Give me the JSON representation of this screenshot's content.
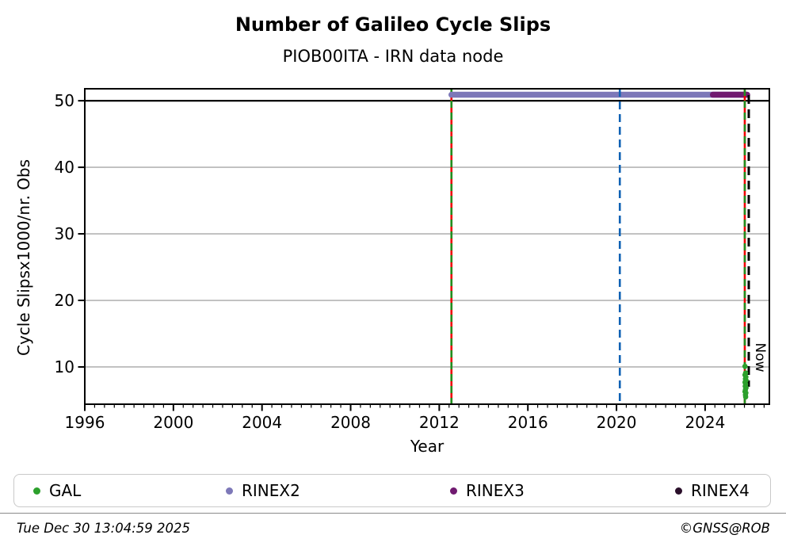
{
  "page": {
    "title": "Number of Galileo Cycle Slips",
    "subtitle": "PIOB00ITA - IRN data node",
    "footer_left": "Tue Dec 30 13:04:59 2025",
    "footer_right": "©GNSS@ROB"
  },
  "legend": {
    "items": [
      {
        "label": "GAL",
        "color": "#2ca02c"
      },
      {
        "label": "RINEX2",
        "color": "#7d78b8"
      },
      {
        "label": "RINEX3",
        "color": "#701a70"
      },
      {
        "label": "RINEX4",
        "color": "#2a0f2a"
      }
    ]
  },
  "chart_data": {
    "type": "scatter",
    "title": "Number of Galileo Cycle Slips",
    "subtitle": "PIOB00ITA - IRN data node",
    "xlabel": "Year",
    "ylabel": "Cycle Slipsx1000/nr. Obs",
    "xlim": [
      1996,
      2026.9
    ],
    "ylim": [
      4.4,
      51.8
    ],
    "xticks": [
      1996,
      2000,
      2004,
      2008,
      2012,
      2016,
      2020,
      2024
    ],
    "x_minor_step": 0.4444,
    "yticks": [
      10,
      20,
      30,
      40,
      50
    ],
    "grid": {
      "color": "#b4b4b4",
      "y_values": [
        10,
        20,
        30,
        40
      ]
    },
    "threshold_line": {
      "y": 50,
      "color": "#000000"
    },
    "availability_bars": [
      {
        "name": "RINEX2",
        "color": "#7d78b8",
        "y": 50.9,
        "start": 2012.55,
        "end": 2025.85
      },
      {
        "name": "RINEX3",
        "color": "#701a70",
        "y": 50.9,
        "start": 2024.35,
        "end": 2025.9
      }
    ],
    "vlines": [
      {
        "x": 2012.55,
        "style": "dashed",
        "colors": [
          "#ee0000",
          "#1f8f1f"
        ]
      },
      {
        "x": 2020.15,
        "style": "dashed",
        "colors": [
          "#1062b4"
        ]
      },
      {
        "x": 2025.79,
        "style": "dashed",
        "colors": [
          "#ee0000",
          "#1f8f1f"
        ]
      },
      {
        "x": 2025.97,
        "style": "dashed",
        "colors": [
          "#000000"
        ],
        "label": "Now"
      }
    ],
    "now_label": "Now",
    "legend_position": "bottom",
    "series": [
      {
        "name": "GAL",
        "type": "scatter",
        "color": "#2ca02c",
        "points": [
          [
            2025.8,
            10.1
          ],
          [
            2025.83,
            9.1
          ],
          [
            2025.8,
            8.8
          ],
          [
            2025.84,
            8.5
          ],
          [
            2025.82,
            8.2
          ],
          [
            2025.85,
            8.0
          ],
          [
            2025.8,
            7.7
          ],
          [
            2025.83,
            7.4
          ],
          [
            2025.81,
            7.1
          ],
          [
            2025.85,
            6.9
          ],
          [
            2025.82,
            6.6
          ],
          [
            2025.8,
            6.3
          ],
          [
            2025.84,
            6.1
          ],
          [
            2025.82,
            5.8
          ],
          [
            2025.83,
            5.5
          ]
        ]
      }
    ]
  }
}
